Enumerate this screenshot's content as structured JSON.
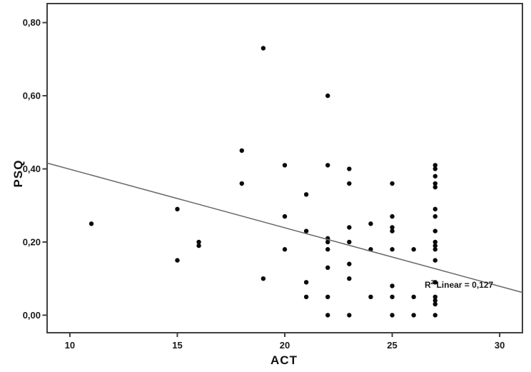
{
  "figure": {
    "xlabel": "ACT",
    "ylabel": "PSQ",
    "annotation": {
      "r_prefix": "R",
      "r_sup": "2",
      "r_rest": " Linear = 0,127"
    }
  },
  "chart_data": {
    "type": "scatter",
    "title": "",
    "xlabel": "ACT",
    "ylabel": "PSQ",
    "xlim": [
      8.94,
      31.06
    ],
    "ylim": [
      -0.048,
      0.852
    ],
    "grid": false,
    "legend": null,
    "x_ticks": [
      {
        "value": 10,
        "label": "10"
      },
      {
        "value": 15,
        "label": "15"
      },
      {
        "value": 20,
        "label": "20"
      },
      {
        "value": 25,
        "label": "25"
      },
      {
        "value": 30,
        "label": "30"
      }
    ],
    "y_ticks": [
      {
        "value": 0.0,
        "label": "0,00"
      },
      {
        "value": 0.2,
        "label": "0,20"
      },
      {
        "value": 0.4,
        "label": "0,40"
      },
      {
        "value": 0.6,
        "label": "0,60"
      },
      {
        "value": 0.8,
        "label": "0,80"
      }
    ],
    "points": [
      [
        11,
        0.25
      ],
      [
        15,
        0.29
      ],
      [
        15,
        0.15
      ],
      [
        16,
        0.2
      ],
      [
        16,
        0.19
      ],
      [
        18,
        0.45
      ],
      [
        18,
        0.36
      ],
      [
        19,
        0.73
      ],
      [
        19,
        0.1
      ],
      [
        20,
        0.41
      ],
      [
        20,
        0.27
      ],
      [
        20,
        0.18
      ],
      [
        21,
        0.33
      ],
      [
        21,
        0.23
      ],
      [
        21,
        0.09
      ],
      [
        21,
        0.05
      ],
      [
        22,
        0.6
      ],
      [
        22,
        0.41
      ],
      [
        22,
        0.21
      ],
      [
        22,
        0.2
      ],
      [
        22,
        0.18
      ],
      [
        22,
        0.13
      ],
      [
        22,
        0.05
      ],
      [
        22,
        0.0
      ],
      [
        23,
        0.4
      ],
      [
        23,
        0.36
      ],
      [
        23,
        0.24
      ],
      [
        23,
        0.2
      ],
      [
        23,
        0.14
      ],
      [
        23,
        0.1
      ],
      [
        23,
        0.0
      ],
      [
        24,
        0.25
      ],
      [
        24,
        0.18
      ],
      [
        24,
        0.05
      ],
      [
        25,
        0.36
      ],
      [
        25,
        0.27
      ],
      [
        25,
        0.24
      ],
      [
        25,
        0.23
      ],
      [
        25,
        0.18
      ],
      [
        25,
        0.08
      ],
      [
        25,
        0.05
      ],
      [
        25,
        0.0
      ],
      [
        26,
        0.18
      ],
      [
        26,
        0.05
      ],
      [
        26,
        0.0
      ],
      [
        27,
        0.41
      ],
      [
        27,
        0.4
      ],
      [
        27,
        0.38
      ],
      [
        27,
        0.36
      ],
      [
        27,
        0.35
      ],
      [
        27,
        0.29
      ],
      [
        27,
        0.27
      ],
      [
        27,
        0.23
      ],
      [
        27,
        0.2
      ],
      [
        27,
        0.19
      ],
      [
        27,
        0.18
      ],
      [
        27,
        0.15
      ],
      [
        27,
        0.09
      ],
      [
        27,
        0.05
      ],
      [
        27,
        0.04
      ],
      [
        27,
        0.03
      ],
      [
        27,
        0.0
      ]
    ],
    "regression_line": {
      "slope": -0.016,
      "intercept": 0.559,
      "r_squared": 0.127,
      "label": "R2 Linear = 0,127"
    },
    "colors": {
      "point": "#0a0a0a",
      "line": "#686868",
      "frame": "#3f3f3f",
      "text": "#1a1a1a"
    }
  }
}
